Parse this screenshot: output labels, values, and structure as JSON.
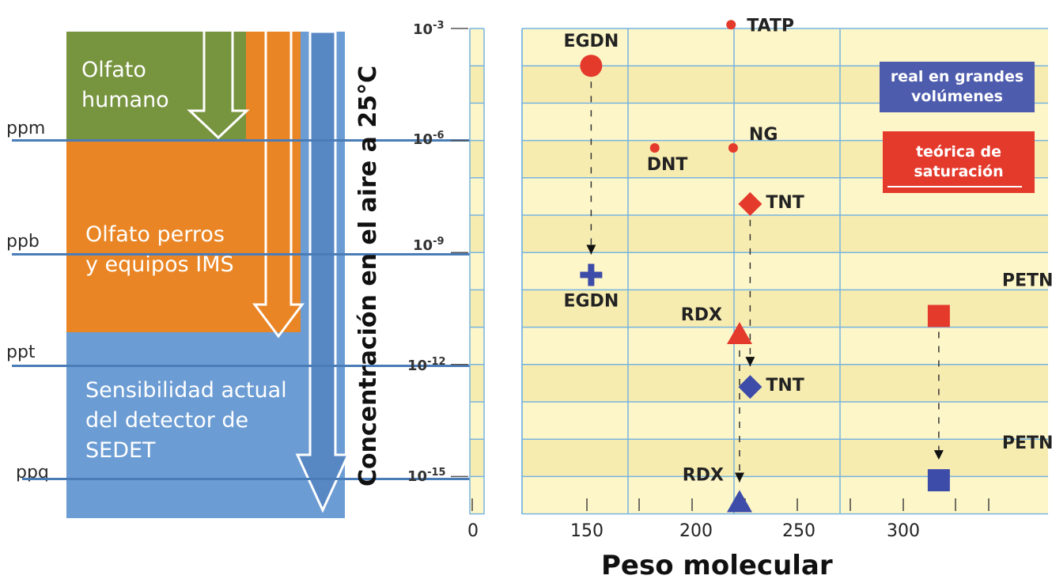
{
  "colors": {
    "green": "#77943f",
    "orange": "#e98524",
    "blue": "#6b9cd3",
    "arrow_dark": "#5888c4",
    "red_marker": "#e3322a",
    "blue_marker": "#3d4ca8",
    "legend_blue": "#4e5cad",
    "legend_red": "#e43a2c",
    "plot_bg_light": "#fdf6c8",
    "plot_bg_dark": "#f7ecb0",
    "grid": "#76b4e0"
  },
  "left_panel": {
    "blocks": [
      {
        "id": "olfato-humano",
        "label": "Olfato\nhumano"
      },
      {
        "id": "olfato-perros",
        "label": "Olfato perros\ny equipos IMS"
      },
      {
        "id": "sensibilidad",
        "label": "Sensibilidad actual\ndel detector de\nSEDET"
      }
    ],
    "levels": [
      "ppm",
      "ppb",
      "ppt",
      "ppq"
    ]
  },
  "chart_data": {
    "type": "scatter",
    "xlabel": "Peso molecular",
    "ylabel": "Concentración en el aire a 25°C",
    "x_ticks": [
      "0",
      "150",
      "200",
      "250",
      "300"
    ],
    "y_ticks": [
      {
        "base": "10",
        "exp": "-3"
      },
      {
        "base": "10",
        "exp": "-6"
      },
      {
        "base": "10",
        "exp": "-9"
      },
      {
        "base": "10",
        "exp": "-12"
      },
      {
        "base": "10",
        "exp": "-15"
      }
    ],
    "xlim": [
      125,
      300
    ],
    "ylim_log10": [
      -16,
      -3
    ],
    "y_scale": "log",
    "legend": [
      {
        "label": "real en grandes\nvolúmenes",
        "color": "#4e5cad"
      },
      {
        "label": "teórica de\nsaturación",
        "color": "#e43a2c"
      }
    ],
    "series": [
      {
        "name": "teórica de saturación",
        "color": "#e43a2c",
        "points": [
          {
            "label": "TATP",
            "x": 218,
            "y_log10": -2.9,
            "marker": "circle-small"
          },
          {
            "label": "EGDN",
            "x": 152,
            "y_log10": -4.0,
            "marker": "circle-large"
          },
          {
            "label": "DNT",
            "x": 182,
            "y_log10": -6.2,
            "marker": "circle-small"
          },
          {
            "label": "NG",
            "x": 219,
            "y_log10": -6.2,
            "marker": "circle-small"
          },
          {
            "label": "TNT",
            "x": 227,
            "y_log10": -7.7,
            "marker": "diamond"
          },
          {
            "label": "RDX",
            "x": 222,
            "y_log10": -11.2,
            "marker": "triangle"
          },
          {
            "label": "PETN",
            "x": 316,
            "y_log10": -10.7,
            "marker": "square"
          }
        ]
      },
      {
        "name": "real en grandes volúmenes",
        "color": "#3d4ca8",
        "points": [
          {
            "label": "EGDN",
            "x": 152,
            "y_log10": -9.6,
            "marker": "plus"
          },
          {
            "label": "TNT",
            "x": 227,
            "y_log10": -12.6,
            "marker": "diamond"
          },
          {
            "label": "RDX",
            "x": 222,
            "y_log10": -15.7,
            "marker": "triangle"
          },
          {
            "label": "PETN",
            "x": 316,
            "y_log10": -15.1,
            "marker": "square"
          }
        ]
      }
    ],
    "arrows": [
      {
        "from": "EGDN",
        "to": "EGDN"
      },
      {
        "from": "TNT",
        "to": "TNT"
      },
      {
        "from": "RDX",
        "to": "RDX"
      },
      {
        "from": "PETN",
        "to": "PETN"
      }
    ]
  }
}
